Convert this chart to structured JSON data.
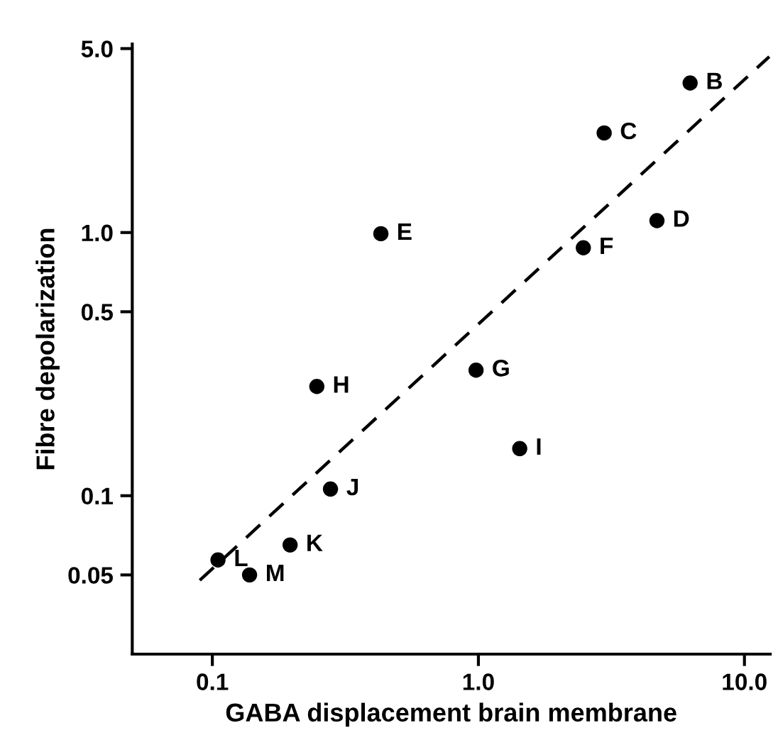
{
  "chart_data": {
    "type": "scatter",
    "xlabel": "GABA displacement brain membrane",
    "ylabel": "Fibre depolarization",
    "log": "xy",
    "grid": false,
    "marker": "circle",
    "xlim": [
      0.05,
      12.5
    ],
    "ylim": [
      0.025,
      5.2
    ],
    "xticks": [
      {
        "value": 0.1,
        "label": "0.1"
      },
      {
        "value": 1.0,
        "label": "1.0"
      },
      {
        "value": 10.0,
        "label": "10.0"
      }
    ],
    "yticks": [
      {
        "value": 0.05,
        "label": "0.05"
      },
      {
        "value": 0.1,
        "label": "0.1"
      },
      {
        "value": 0.5,
        "label": "0.5"
      },
      {
        "value": 1.0,
        "label": "1.0"
      },
      {
        "value": 5.0,
        "label": "5.0"
      }
    ],
    "series": [
      {
        "color": "#000000",
        "x": [
          6.25,
          2.97,
          4.69,
          0.43,
          2.48,
          0.98,
          0.247,
          1.43,
          0.278,
          0.196,
          0.105,
          0.138
        ],
        "values": [
          3.7,
          2.39,
          1.11,
          0.99,
          0.875,
          0.3,
          0.26,
          0.151,
          0.106,
          0.065,
          0.057,
          0.05
        ]
      },
      {
        "type": "line",
        "color": "#000000",
        "line_style": "dashed",
        "marker": "none",
        "x": [
          0.0897,
          12.4
        ],
        "values": [
          0.0477,
          4.66
        ]
      }
    ],
    "annotations": [
      {
        "text": "B",
        "x": 6.25,
        "y": 3.7
      },
      {
        "text": "C",
        "x": 2.97,
        "y": 2.39
      },
      {
        "text": "D",
        "x": 4.69,
        "y": 1.11
      },
      {
        "text": "E",
        "x": 0.43,
        "y": 0.99
      },
      {
        "text": "F",
        "x": 2.48,
        "y": 0.875
      },
      {
        "text": "G",
        "x": 0.98,
        "y": 0.3
      },
      {
        "text": "H",
        "x": 0.247,
        "y": 0.26
      },
      {
        "text": "I",
        "x": 1.43,
        "y": 0.151
      },
      {
        "text": "J",
        "x": 0.278,
        "y": 0.106
      },
      {
        "text": "K",
        "x": 0.196,
        "y": 0.065
      },
      {
        "text": "L",
        "x": 0.105,
        "y": 0.057
      },
      {
        "text": "M",
        "x": 0.138,
        "y": 0.05
      }
    ]
  }
}
